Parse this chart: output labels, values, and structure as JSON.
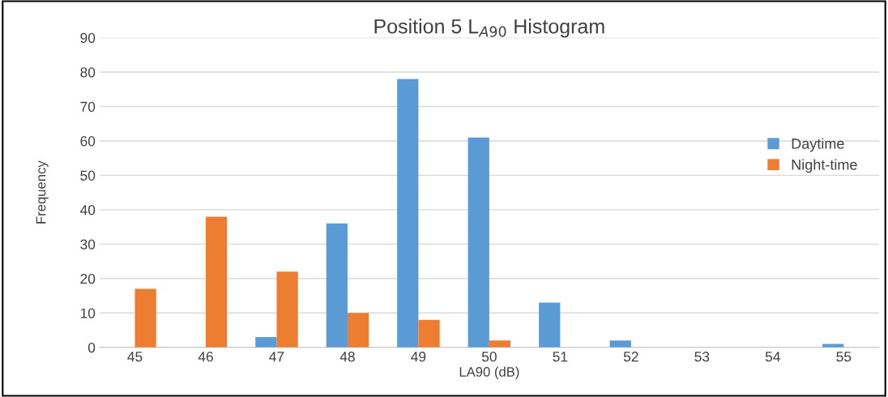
{
  "chart_data": {
    "type": "bar",
    "title": "Position 5 L$_{A90}$ Histogram",
    "xlabel": "LA90 (dB)",
    "ylabel": "Frequency",
    "categories": [
      "45",
      "46",
      "47",
      "48",
      "49",
      "50",
      "51",
      "52",
      "53",
      "54",
      "55"
    ],
    "series": [
      {
        "name": "Daytime",
        "color": "#5b9bd5",
        "values": [
          0,
          0,
          3,
          36,
          78,
          61,
          13,
          2,
          0,
          0,
          1
        ]
      },
      {
        "name": "Night-time",
        "color": "#ed7d31",
        "values": [
          17,
          38,
          22,
          10,
          8,
          2,
          0,
          0,
          0,
          0,
          0
        ]
      }
    ],
    "ylim": [
      0,
      90
    ],
    "yticks": [
      0,
      10,
      20,
      30,
      40,
      50,
      60,
      70,
      80,
      90
    ],
    "grid": "y",
    "legend": "right"
  }
}
